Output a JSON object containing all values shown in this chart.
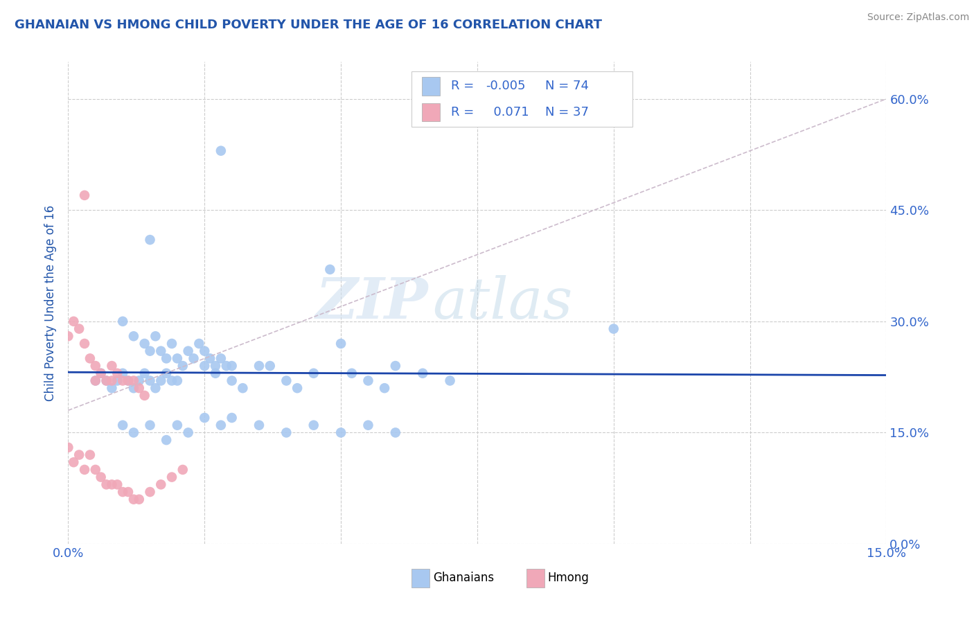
{
  "title": "GHANAIAN VS HMONG CHILD POVERTY UNDER THE AGE OF 16 CORRELATION CHART",
  "source": "Source: ZipAtlas.com",
  "ylabel": "Child Poverty Under the Age of 16",
  "xlim": [
    0.0,
    0.15
  ],
  "ylim": [
    0.0,
    0.65
  ],
  "xtick_vals": [
    0.0,
    0.025,
    0.05,
    0.075,
    0.1,
    0.125,
    0.15
  ],
  "xtick_labels": [
    "0.0%",
    "",
    "",
    "",
    "",
    "",
    "15.0%"
  ],
  "ytick_vals": [
    0.0,
    0.15,
    0.3,
    0.45,
    0.6
  ],
  "ytick_labels": [
    "0.0%",
    "15.0%",
    "30.0%",
    "45.0%",
    "60.0%"
  ],
  "background_color": "#ffffff",
  "grid_color": "#cccccc",
  "watermark": "ZIPatlas",
  "legend_R1": "-0.005",
  "legend_N1": "74",
  "legend_R2": "0.071",
  "legend_N2": "37",
  "blue_scatter_x": [
    0.005,
    0.008,
    0.009,
    0.01,
    0.01,
    0.011,
    0.012,
    0.012,
    0.013,
    0.013,
    0.014,
    0.014,
    0.015,
    0.015,
    0.015,
    0.016,
    0.016,
    0.017,
    0.017,
    0.018,
    0.018,
    0.018,
    0.019,
    0.019,
    0.02,
    0.02,
    0.021,
    0.022,
    0.022,
    0.023,
    0.023,
    0.024,
    0.025,
    0.027,
    0.028,
    0.029,
    0.03,
    0.032,
    0.033,
    0.035,
    0.035,
    0.036,
    0.037,
    0.038,
    0.04,
    0.042,
    0.045,
    0.048,
    0.05,
    0.052,
    0.055,
    0.058,
    0.06,
    0.062,
    0.065,
    0.068,
    0.07,
    0.072,
    0.075,
    0.03,
    0.027,
    0.028,
    0.03,
    0.1,
    0.02,
    0.016,
    0.017,
    0.018,
    0.019,
    0.02,
    0.04,
    0.05,
    0.06,
    0.07
  ],
  "blue_scatter_y": [
    0.53,
    0.41,
    0.35,
    0.33,
    0.3,
    0.28,
    0.32,
    0.25,
    0.3,
    0.23,
    0.28,
    0.25,
    0.24,
    0.22,
    0.27,
    0.2,
    0.23,
    0.28,
    0.22,
    0.22,
    0.24,
    0.21,
    0.25,
    0.22,
    0.23,
    0.22,
    0.24,
    0.2,
    0.22,
    0.22,
    0.2,
    0.27,
    0.27,
    0.24,
    0.27,
    0.24,
    0.24,
    0.2,
    0.22,
    0.25,
    0.22,
    0.2,
    0.25,
    0.22,
    0.22,
    0.17,
    0.22,
    0.2,
    0.36,
    0.22,
    0.22,
    0.2,
    0.27,
    0.22,
    0.26,
    0.22,
    0.2,
    0.27,
    0.22,
    0.27,
    0.22,
    0.22,
    0.24,
    0.3,
    0.17,
    0.15,
    0.13,
    0.16,
    0.12,
    0.12,
    0.14,
    0.14,
    0.12,
    0.19
  ],
  "pink_scatter_x": [
    0.0,
    0.001,
    0.002,
    0.003,
    0.004,
    0.005,
    0.005,
    0.006,
    0.007,
    0.008,
    0.008,
    0.009,
    0.01,
    0.01,
    0.011,
    0.012,
    0.013,
    0.014,
    0.0,
    0.001,
    0.002,
    0.003,
    0.004,
    0.005,
    0.006,
    0.007,
    0.008,
    0.009,
    0.01,
    0.011,
    0.012,
    0.013,
    0.015,
    0.017,
    0.019,
    0.021,
    0.024
  ],
  "pink_scatter_y": [
    0.47,
    0.32,
    0.3,
    0.28,
    0.25,
    0.22,
    0.18,
    0.2,
    0.18,
    0.22,
    0.28,
    0.25,
    0.22,
    0.19,
    0.18,
    0.22,
    0.22,
    0.2,
    0.12,
    0.1,
    0.1,
    0.08,
    0.1,
    0.09,
    0.07,
    0.06,
    0.07,
    0.09,
    0.06,
    0.06,
    0.06,
    0.05,
    0.08,
    0.09,
    0.1,
    0.12,
    0.14
  ],
  "blue_color": "#a8c8f0",
  "pink_color": "#f0a8b8",
  "regression_blue_color": "#1a44aa",
  "regression_pink_color": "#cc8899",
  "legend_text_color": "#3366cc",
  "title_color": "#2255aa",
  "axis_label_color": "#2255aa",
  "tick_color": "#3366cc",
  "source_color": "#888888"
}
